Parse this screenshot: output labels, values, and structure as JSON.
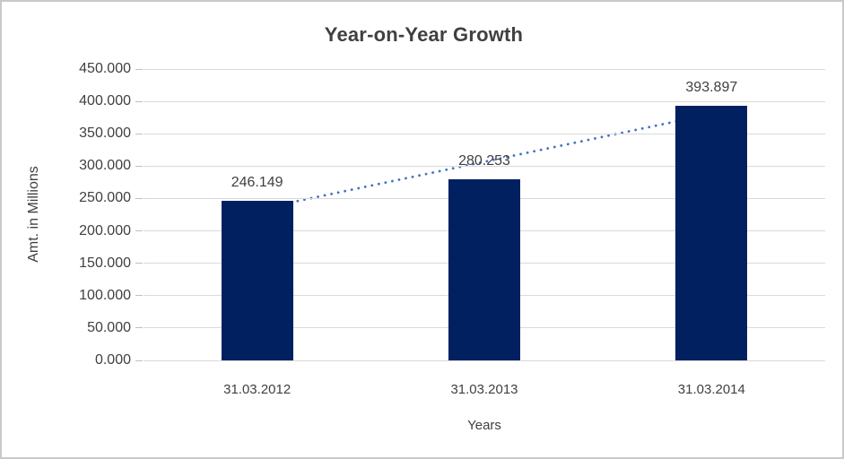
{
  "chart_data": {
    "type": "bar",
    "title": "Year-on-Year Growth",
    "xlabel": "Years",
    "ylabel": "Amt. in Millions",
    "categories": [
      "31.03.2012",
      "31.03.2013",
      "31.03.2014"
    ],
    "values": [
      246.149,
      280.253,
      393.897
    ],
    "value_labels": [
      "246.149",
      "280.253",
      "393.897"
    ],
    "ylim": [
      0,
      450
    ],
    "ytick_step": 50,
    "ytick_labels": [
      "0.000",
      "50.000",
      "100.000",
      "150.000",
      "200.000",
      "250.000",
      "300.000",
      "350.000",
      "400.000",
      "450.000"
    ],
    "grid": true,
    "legend": false,
    "trendline": {
      "type": "linear",
      "style": "dotted",
      "start_value": 232.9,
      "end_value": 380.6
    },
    "colors": {
      "bar": "#002060",
      "trendline": "#4472C4",
      "gridline": "#D9D9D9",
      "tick": "#BFBFBF",
      "text": "#404040",
      "frame_border": "#C9C9C9",
      "background": "#FFFFFF"
    }
  }
}
